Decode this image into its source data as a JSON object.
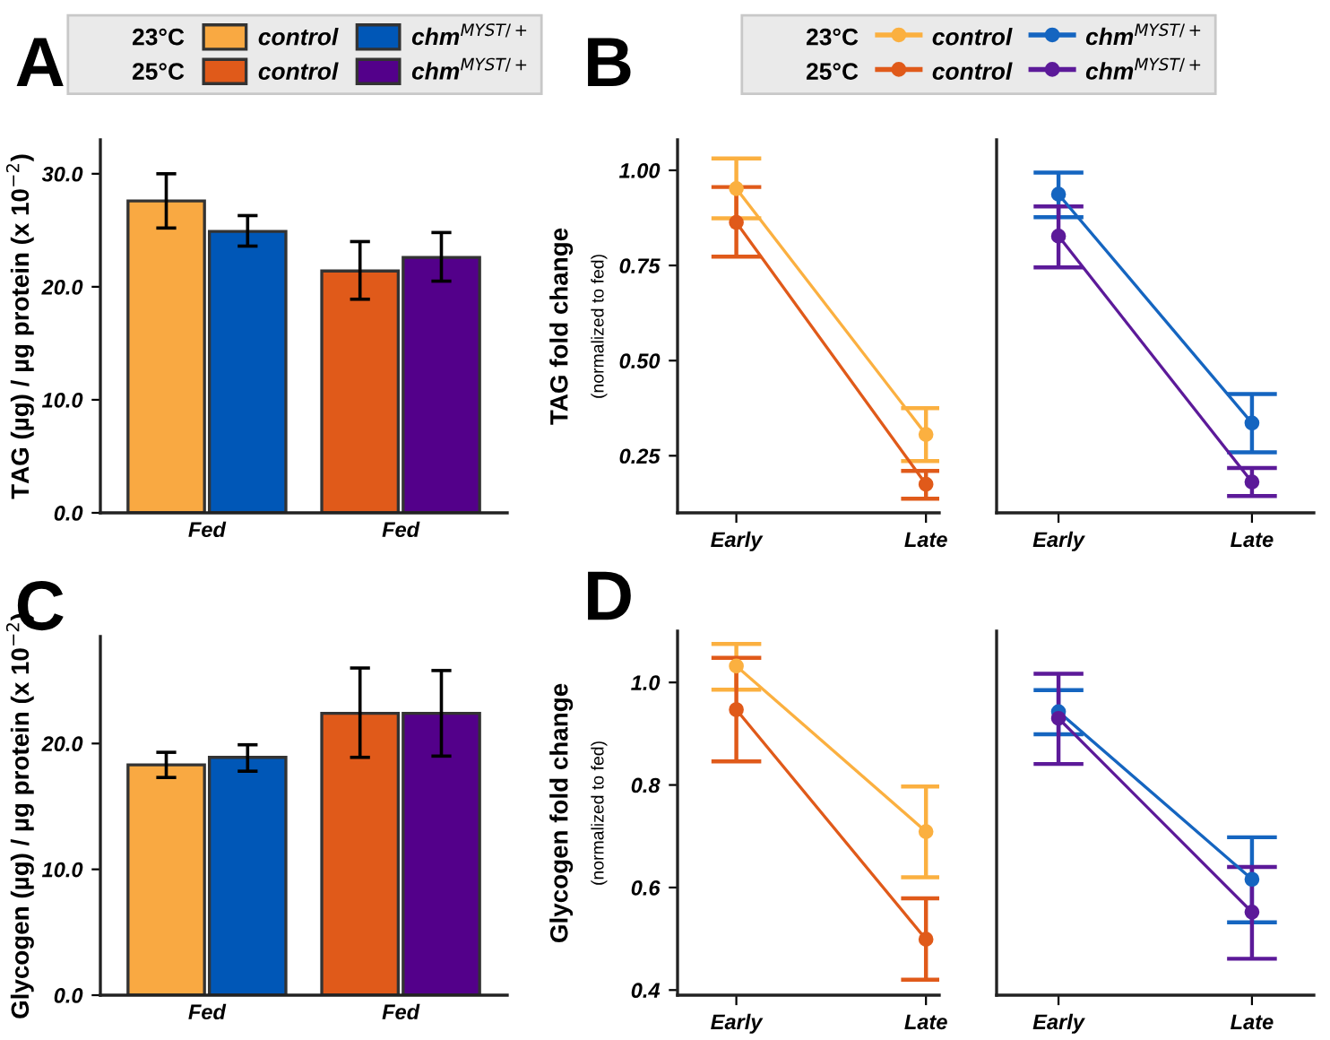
{
  "chart_data": [
    {
      "type": "bar",
      "title": "A",
      "ylabel": "TAG (µg) / µg protein (x 10$^{−2}$)",
      "categories": [
        "Fed",
        "Fed"
      ],
      "ylim": [
        0,
        33
      ],
      "yticks": [
        {
          "value": 0,
          "label": "0.0"
        },
        {
          "value": 10,
          "label": "10.0"
        },
        {
          "value": 20,
          "label": "20.0"
        },
        {
          "value": 30,
          "label": "30.0"
        }
      ],
      "legend": "top",
      "annotations": [
        "23°C",
        "25°C"
      ],
      "series": [
        {
          "name": "control",
          "color": "#f9a942",
          "values": [
            27.6,
            null
          ],
          "errors": [
            [
              25.2,
              30.0
            ],
            null
          ]
        },
        {
          "name": "chm$^{MYST/+}$",
          "color": "#0057b7",
          "values": [
            24.9,
            null
          ],
          "errors": [
            [
              23.6,
              26.3
            ],
            null
          ]
        },
        {
          "name": "control",
          "color": "#e05a1a",
          "values": [
            null,
            21.4
          ],
          "errors": [
            null,
            [
              18.9,
              24.0
            ]
          ]
        },
        {
          "name": "chm$^{MYST/+}$",
          "color": "#53008a",
          "values": [
            null,
            22.6
          ],
          "errors": [
            null,
            [
              20.5,
              24.8
            ]
          ]
        }
      ]
    },
    {
      "type": "line",
      "title": "B",
      "ylabel": "TAG fold change\n(normalized to fed)",
      "categories": [
        "Early",
        "Late"
      ],
      "ylim": [
        0.1,
        1.08
      ],
      "yticks": [
        {
          "value": 0.25,
          "label": "0.25"
        },
        {
          "value": 0.5,
          "label": "0.50"
        },
        {
          "value": 0.75,
          "label": "0.75"
        },
        {
          "value": 1.0,
          "label": "1.00"
        }
      ],
      "marker": "circle",
      "legend": "top",
      "annotations": [
        "23°C",
        "25°C"
      ],
      "series": [
        {
          "name": "control",
          "color": "#fbb040",
          "values": [
            0.952,
            0.306
          ],
          "errors": [
            [
              0.874,
              1.031
            ],
            [
              0.236,
              0.375
            ]
          ]
        },
        {
          "name": "control",
          "color": "#e05a1a",
          "values": [
            0.863,
            0.175
          ],
          "errors": [
            [
              0.773,
              0.956
            ],
            [
              0.137,
              0.21
            ]
          ]
        }
      ]
    },
    {
      "type": "line",
      "categories": [
        "Early",
        "Late"
      ],
      "ylim": [
        0.1,
        1.08
      ],
      "tick_labels": "x",
      "marker": "circle",
      "series": [
        {
          "name": "chm$^{MYST/+}$",
          "color": "#1565c0",
          "values": [
            0.937,
            0.336
          ],
          "errors": [
            [
              0.877,
              0.994
            ],
            [
              0.259,
              0.412
            ]
          ]
        },
        {
          "name": "chm$^{MYST/+}$",
          "color": "#5c1a99",
          "values": [
            0.827,
            0.181
          ],
          "errors": [
            [
              0.745,
              0.905
            ],
            [
              0.144,
              0.218
            ]
          ]
        }
      ]
    },
    {
      "type": "bar",
      "title": "C",
      "ylabel": "Glycogen (µg) / µg protein (x 10$^{−2}$)",
      "categories": [
        "Fed",
        "Fed"
      ],
      "ylim": [
        0,
        28.5
      ],
      "yticks": [
        {
          "value": 0,
          "label": "0.0"
        },
        {
          "value": 10,
          "label": "10.0"
        },
        {
          "value": 20,
          "label": "20.0"
        }
      ],
      "series": [
        {
          "color": "#f9a942",
          "values": [
            18.3,
            null
          ],
          "errors": [
            [
              17.3,
              19.3
            ],
            null
          ]
        },
        {
          "color": "#0057b7",
          "values": [
            18.9,
            null
          ],
          "errors": [
            [
              17.8,
              19.9
            ],
            null
          ]
        },
        {
          "color": "#e05a1a",
          "values": [
            null,
            22.4
          ],
          "errors": [
            null,
            [
              18.9,
              26.0
            ]
          ]
        },
        {
          "color": "#53008a",
          "values": [
            null,
            22.4
          ],
          "errors": [
            null,
            [
              19.0,
              25.8
            ]
          ]
        }
      ]
    },
    {
      "type": "line",
      "title": "D",
      "ylabel": "Glycogen fold change\n(normalized to fed)",
      "categories": [
        "Early",
        "Late"
      ],
      "ylim": [
        0.39,
        1.1
      ],
      "yticks": [
        {
          "value": 0.4,
          "label": "0.4"
        },
        {
          "value": 0.6,
          "label": "0.6"
        },
        {
          "value": 0.8,
          "label": "0.8"
        },
        {
          "value": 1.0,
          "label": "1.0"
        }
      ],
      "marker": "circle",
      "series": [
        {
          "color": "#fbb040",
          "values": [
            1.032,
            0.709
          ],
          "errors": [
            [
              0.986,
              1.075
            ],
            [
              0.62,
              0.797
            ]
          ]
        },
        {
          "color": "#e05a1a",
          "values": [
            0.947,
            0.499
          ],
          "errors": [
            [
              0.846,
              1.048
            ],
            [
              0.42,
              0.579
            ]
          ]
        }
      ]
    },
    {
      "type": "line",
      "categories": [
        "Early",
        "Late"
      ],
      "ylim": [
        0.39,
        1.1
      ],
      "tick_labels": "x",
      "marker": "circle",
      "series": [
        {
          "color": "#1565c0",
          "values": [
            0.943,
            0.616
          ],
          "errors": [
            [
              0.899,
              0.985
            ],
            [
              0.532,
              0.698
            ]
          ]
        },
        {
          "color": "#5c1a99",
          "values": [
            0.93,
            0.552
          ],
          "errors": [
            [
              0.841,
              1.017
            ],
            [
              0.461,
              0.64
            ]
          ]
        }
      ]
    }
  ]
}
